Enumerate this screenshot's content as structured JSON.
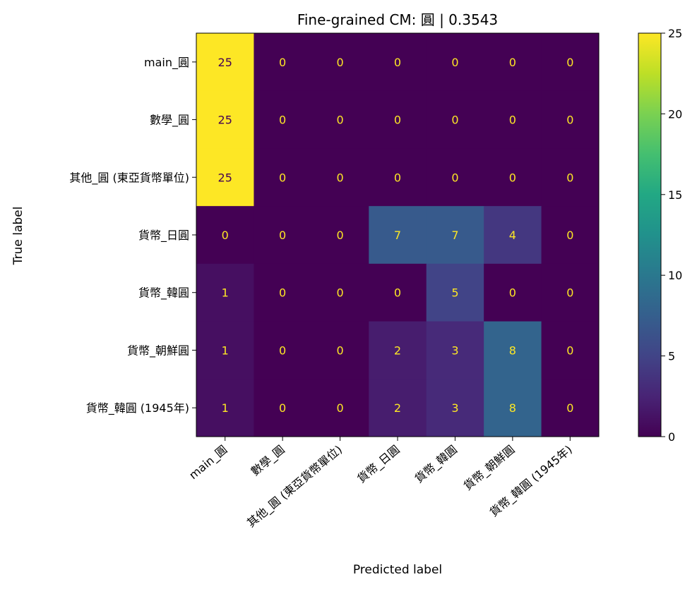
{
  "chart_data": {
    "type": "heatmap",
    "title": "Fine-grained CM: 圓 | 0.3543",
    "xlabel": "Predicted label",
    "ylabel": "True label",
    "row_labels": [
      "main_圓",
      "數學_圓",
      "其他_圓 (東亞貨幣單位)",
      "貨幣_日圓",
      "貨幣_韓圓",
      "貨幣_朝鮮圓",
      "貨幣_韓圓 (1945年)"
    ],
    "col_labels": [
      "main_圓",
      "數學_圓",
      "其他_圓 (東亞貨幣單位)",
      "貨幣_日圓",
      "貨幣_韓圓",
      "貨幣_朝鮮圓",
      "貨幣_韓圓 (1945年)"
    ],
    "values": [
      [
        25,
        0,
        0,
        0,
        0,
        0,
        0
      ],
      [
        25,
        0,
        0,
        0,
        0,
        0,
        0
      ],
      [
        25,
        0,
        0,
        0,
        0,
        0,
        0
      ],
      [
        0,
        0,
        0,
        7,
        7,
        4,
        0
      ],
      [
        1,
        0,
        0,
        0,
        5,
        0,
        0
      ],
      [
        1,
        0,
        0,
        2,
        3,
        8,
        0
      ],
      [
        1,
        0,
        0,
        2,
        3,
        8,
        0
      ]
    ],
    "colorbar": {
      "min": 0,
      "max": 25,
      "ticks": [
        "0",
        "5",
        "10",
        "15",
        "20",
        "25"
      ]
    },
    "colormap": "viridis"
  }
}
